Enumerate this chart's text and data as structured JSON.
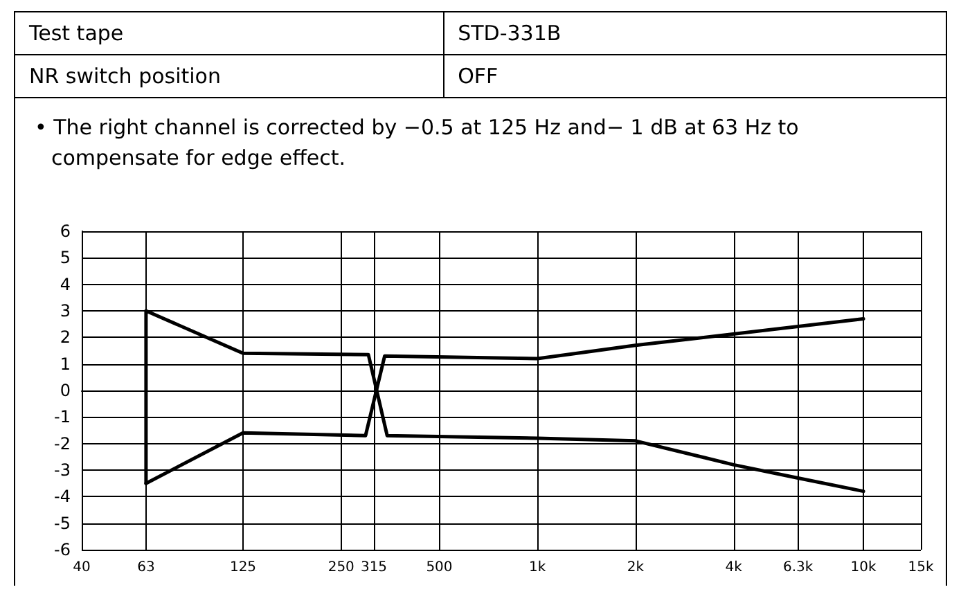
{
  "chart_data": {
    "type": "line",
    "annotations": [
      "Test tape",
      "STD-331B",
      "NR switch position",
      "OFF",
      "• The right channel is corrected by −0.5 at 125 Hz and− 1 dB at 63 Hz to compensate for edge effect."
    ],
    "log": "x",
    "xlim": [
      40,
      15000
    ],
    "xticks": [
      40,
      63,
      125,
      250,
      315,
      500,
      {
        "value": 1000,
        "label": "1k"
      },
      {
        "value": 2000,
        "label": "2k"
      },
      {
        "value": 4000,
        "label": "4k"
      },
      {
        "value": 6300,
        "label": "6.3k"
      },
      {
        "value": 10000,
        "label": "10k"
      },
      {
        "value": 15000,
        "label": "15k"
      }
    ],
    "ylim": [
      -6,
      6
    ],
    "yticks": [
      -6,
      -5,
      -4,
      -3,
      -2,
      -1,
      0,
      1,
      2,
      3,
      4,
      5,
      6
    ],
    "grid": true,
    "marker": "none",
    "line_style": "solid",
    "series": [
      {
        "color": "#000000",
        "x": [
          63,
          63,
          125,
          303,
          346,
          1000,
          2000,
          4000,
          6300,
          10000
        ],
        "values": [
          -3.5,
          3,
          1.4,
          1.35,
          -1.7,
          -1.8,
          -1.9,
          -2.8,
          -3.3,
          -3.8
        ]
      },
      {
        "color": "#000000",
        "x": [
          63,
          125,
          297,
          340,
          1000,
          2000,
          10000
        ],
        "values": [
          -3.5,
          -1.6,
          -1.7,
          1.3,
          1.2,
          1.7,
          2.7
        ]
      }
    ]
  }
}
